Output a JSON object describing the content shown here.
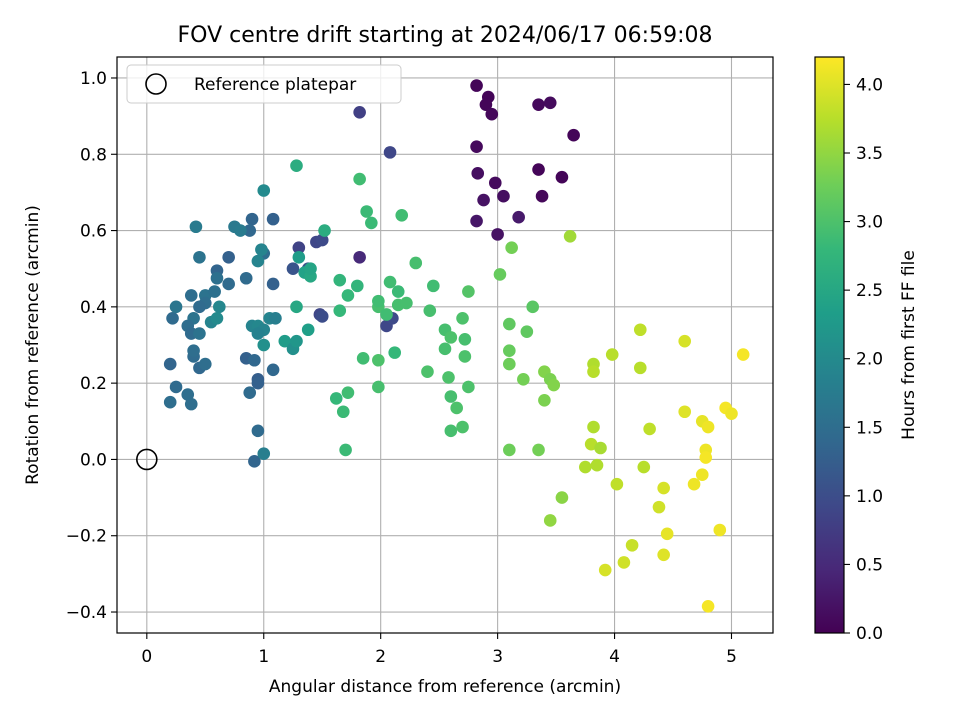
{
  "chart_data": {
    "type": "scatter",
    "title": "FOV centre drift starting at 2024/06/17 06:59:08",
    "xlabel": "Angular distance from reference (arcmin)",
    "ylabel": "Rotation from reference (arcmin)",
    "xlim": [
      -0.255,
      5.355
    ],
    "ylim": [
      -0.455,
      1.055
    ],
    "x_ticks": [
      0,
      1,
      2,
      3,
      4,
      5
    ],
    "x_tick_labels": [
      "0",
      "1",
      "2",
      "3",
      "4",
      "5"
    ],
    "y_ticks": [
      -0.4,
      -0.2,
      0.0,
      0.2,
      0.4,
      0.6,
      0.8,
      1.0
    ],
    "y_tick_labels": [
      "−0.4",
      "−0.2",
      "0.0",
      "0.2",
      "0.4",
      "0.6",
      "0.8",
      "1.0"
    ],
    "grid": true,
    "legend": {
      "position": "top-left",
      "entries": [
        {
          "label": "Reference platepar",
          "marker": "open-circle"
        }
      ]
    },
    "reference_point": {
      "x": 0.0,
      "y": 0.0
    },
    "colorbar": {
      "label": "Hours from first FF file",
      "colormap": "viridis",
      "range": [
        0.0,
        4.2
      ],
      "ticks": [
        0.0,
        0.5,
        1.0,
        1.5,
        2.0,
        2.5,
        3.0,
        3.5,
        4.0
      ],
      "tick_labels": [
        "0.0",
        "0.5",
        "1.0",
        "1.5",
        "2.0",
        "2.5",
        "3.0",
        "3.5",
        "4.0"
      ]
    },
    "colormap_stops": [
      "#440154",
      "#482878",
      "#3e4989",
      "#31688e",
      "#26828e",
      "#1f9e89",
      "#35b779",
      "#6ece58",
      "#b5de2b",
      "#fde725"
    ],
    "points": [
      [
        2.82,
        0.98,
        0.05
      ],
      [
        2.92,
        0.95,
        0.05
      ],
      [
        2.9,
        0.93,
        0.05
      ],
      [
        2.95,
        0.905,
        0.08
      ],
      [
        3.35,
        0.93,
        0.1
      ],
      [
        3.45,
        0.935,
        0.12
      ],
      [
        3.65,
        0.85,
        0.05
      ],
      [
        2.82,
        0.82,
        0.1
      ],
      [
        2.83,
        0.75,
        0.15
      ],
      [
        3.35,
        0.76,
        0.05
      ],
      [
        3.55,
        0.74,
        0.05
      ],
      [
        2.98,
        0.725,
        0.12
      ],
      [
        3.05,
        0.69,
        0.15
      ],
      [
        2.88,
        0.68,
        0.2
      ],
      [
        3.38,
        0.69,
        0.08
      ],
      [
        3.18,
        0.635,
        0.3
      ],
      [
        2.82,
        0.625,
        0.25
      ],
      [
        3.0,
        0.59,
        0.2
      ],
      [
        1.82,
        0.91,
        0.8
      ],
      [
        2.08,
        0.805,
        0.9
      ],
      [
        1.82,
        0.53,
        0.5
      ],
      [
        2.05,
        0.35,
        0.9
      ],
      [
        2.1,
        0.37,
        0.95
      ],
      [
        1.48,
        0.38,
        0.9
      ],
      [
        1.5,
        0.375,
        1.0
      ],
      [
        1.3,
        0.555,
        0.85
      ],
      [
        1.45,
        0.57,
        0.9
      ],
      [
        1.5,
        0.575,
        0.95
      ],
      [
        1.38,
        0.5,
        1.05
      ],
      [
        1.25,
        0.5,
        1.1
      ],
      [
        1.0,
        0.54,
        1.5
      ],
      [
        1.08,
        0.63,
        1.3
      ],
      [
        0.9,
        0.63,
        1.35
      ],
      [
        0.88,
        0.6,
        1.4
      ],
      [
        0.7,
        0.53,
        1.3
      ],
      [
        0.6,
        0.495,
        1.35
      ],
      [
        0.7,
        0.46,
        1.45
      ],
      [
        1.08,
        0.46,
        1.3
      ],
      [
        0.5,
        0.43,
        1.6
      ],
      [
        0.58,
        0.44,
        1.55
      ],
      [
        0.45,
        0.53,
        1.6
      ],
      [
        0.42,
        0.61,
        1.75
      ],
      [
        0.38,
        0.43,
        1.5
      ],
      [
        0.5,
        0.41,
        1.5
      ],
      [
        0.45,
        0.4,
        1.45
      ],
      [
        0.6,
        0.475,
        1.55
      ],
      [
        0.4,
        0.37,
        1.6
      ],
      [
        0.35,
        0.35,
        1.5
      ],
      [
        0.38,
        0.33,
        1.45
      ],
      [
        0.45,
        0.33,
        1.6
      ],
      [
        0.22,
        0.37,
        1.45
      ],
      [
        0.25,
        0.4,
        1.65
      ],
      [
        0.2,
        0.25,
        1.35
      ],
      [
        0.2,
        0.15,
        1.5
      ],
      [
        0.25,
        0.19,
        1.45
      ],
      [
        0.35,
        0.17,
        1.5
      ],
      [
        0.38,
        0.145,
        1.5
      ],
      [
        0.4,
        0.27,
        1.45
      ],
      [
        0.4,
        0.285,
        1.5
      ],
      [
        0.45,
        0.24,
        1.4
      ],
      [
        0.5,
        0.25,
        1.5
      ],
      [
        0.85,
        0.265,
        1.3
      ],
      [
        0.92,
        0.26,
        1.4
      ],
      [
        0.95,
        0.21,
        1.25
      ],
      [
        0.95,
        0.2,
        1.3
      ],
      [
        0.88,
        0.175,
        1.45
      ],
      [
        0.85,
        0.475,
        1.45
      ],
      [
        1.08,
        0.235,
        1.4
      ],
      [
        0.95,
        0.075,
        1.45
      ],
      [
        0.92,
        -0.005,
        1.35
      ],
      [
        1.0,
        0.015,
        1.8
      ],
      [
        0.55,
        0.36,
        1.9
      ],
      [
        0.6,
        0.37,
        2.0
      ],
      [
        0.62,
        0.4,
        1.95
      ],
      [
        0.9,
        0.35,
        1.9
      ],
      [
        0.95,
        0.35,
        1.95
      ],
      [
        1.0,
        0.34,
        1.9
      ],
      [
        0.95,
        0.33,
        1.85
      ],
      [
        1.05,
        0.37,
        1.9
      ],
      [
        1.1,
        0.37,
        1.8
      ],
      [
        1.0,
        0.3,
        2.1
      ],
      [
        1.18,
        0.31,
        2.3
      ],
      [
        1.25,
        0.29,
        2.1
      ],
      [
        1.28,
        0.31,
        2.2
      ],
      [
        0.95,
        0.52,
        1.9
      ],
      [
        0.98,
        0.55,
        1.9
      ],
      [
        1.0,
        0.705,
        2.0
      ],
      [
        0.75,
        0.61,
        1.7
      ],
      [
        0.8,
        0.6,
        1.75
      ],
      [
        1.28,
        0.4,
        2.5
      ],
      [
        1.3,
        0.53,
        2.3
      ],
      [
        1.35,
        0.49,
        2.4
      ],
      [
        1.4,
        0.48,
        2.5
      ],
      [
        1.4,
        0.5,
        2.45
      ],
      [
        1.38,
        0.34,
        2.35
      ],
      [
        1.52,
        0.6,
        2.6
      ],
      [
        1.28,
        0.77,
        2.6
      ],
      [
        1.65,
        0.39,
        2.8
      ],
      [
        1.65,
        0.47,
        2.75
      ],
      [
        1.72,
        0.43,
        2.8
      ],
      [
        1.8,
        0.455,
        2.75
      ],
      [
        1.82,
        0.735,
        2.9
      ],
      [
        1.88,
        0.65,
        2.85
      ],
      [
        1.92,
        0.62,
        2.85
      ],
      [
        2.18,
        0.64,
        2.9
      ],
      [
        1.98,
        0.4,
        2.95
      ],
      [
        1.98,
        0.415,
        2.9
      ],
      [
        2.05,
        0.38,
        2.9
      ],
      [
        2.08,
        0.465,
        2.9
      ],
      [
        2.15,
        0.44,
        2.85
      ],
      [
        2.15,
        0.405,
        2.95
      ],
      [
        2.22,
        0.41,
        2.95
      ],
      [
        2.3,
        0.515,
        2.95
      ],
      [
        2.45,
        0.455,
        2.9
      ],
      [
        2.42,
        0.39,
        2.95
      ],
      [
        2.4,
        0.23,
        3.0
      ],
      [
        1.85,
        0.265,
        2.9
      ],
      [
        1.98,
        0.26,
        3.0
      ],
      [
        1.98,
        0.19,
        2.95
      ],
      [
        2.12,
        0.28,
        2.8
      ],
      [
        1.62,
        0.16,
        2.8
      ],
      [
        1.68,
        0.125,
        2.85
      ],
      [
        1.72,
        0.175,
        2.9
      ],
      [
        1.7,
        0.025,
        2.85
      ],
      [
        2.55,
        0.34,
        2.95
      ],
      [
        2.6,
        0.32,
        3.0
      ],
      [
        2.55,
        0.29,
        2.95
      ],
      [
        2.7,
        0.37,
        3.0
      ],
      [
        2.72,
        0.315,
        2.95
      ],
      [
        2.72,
        0.27,
        3.0
      ],
      [
        2.75,
        0.44,
        3.05
      ],
      [
        2.58,
        0.215,
        3.0
      ],
      [
        2.75,
        0.19,
        3.0
      ],
      [
        2.6,
        0.165,
        2.95
      ],
      [
        2.65,
        0.135,
        3.0
      ],
      [
        2.6,
        0.075,
        2.95
      ],
      [
        2.7,
        0.085,
        3.0
      ],
      [
        3.02,
        0.485,
        3.2
      ],
      [
        3.12,
        0.555,
        3.3
      ],
      [
        3.1,
        0.355,
        3.15
      ],
      [
        3.1,
        0.285,
        3.2
      ],
      [
        3.1,
        0.25,
        3.25
      ],
      [
        3.25,
        0.335,
        3.15
      ],
      [
        3.3,
        0.4,
        3.1
      ],
      [
        3.22,
        0.21,
        3.3
      ],
      [
        3.1,
        0.025,
        3.25
      ],
      [
        3.35,
        0.025,
        3.3
      ],
      [
        3.4,
        0.23,
        3.4
      ],
      [
        3.45,
        0.21,
        3.35
      ],
      [
        3.48,
        0.195,
        3.4
      ],
      [
        3.4,
        0.155,
        3.35
      ],
      [
        3.62,
        0.585,
        3.6
      ],
      [
        3.55,
        -0.1,
        3.45
      ],
      [
        3.45,
        -0.16,
        3.5
      ],
      [
        3.75,
        -0.02,
        3.7
      ],
      [
        3.82,
        0.25,
        3.7
      ],
      [
        3.82,
        0.23,
        3.75
      ],
      [
        3.8,
        0.04,
        3.75
      ],
      [
        3.85,
        -0.015,
        3.7
      ],
      [
        3.88,
        0.03,
        3.65
      ],
      [
        3.82,
        0.085,
        3.7
      ],
      [
        3.98,
        0.275,
        3.75
      ],
      [
        4.22,
        0.34,
        3.8
      ],
      [
        4.22,
        0.24,
        3.75
      ],
      [
        4.02,
        -0.065,
        3.8
      ],
      [
        4.25,
        -0.02,
        3.75
      ],
      [
        4.3,
        0.08,
        3.8
      ],
      [
        4.15,
        -0.225,
        3.85
      ],
      [
        4.08,
        -0.27,
        3.9
      ],
      [
        3.92,
        -0.29,
        3.95
      ],
      [
        4.38,
        -0.125,
        3.9
      ],
      [
        4.42,
        -0.075,
        3.95
      ],
      [
        4.42,
        -0.25,
        4.0
      ],
      [
        4.45,
        -0.195,
        4.05
      ],
      [
        4.6,
        0.125,
        4.0
      ],
      [
        4.6,
        0.31,
        3.95
      ],
      [
        4.68,
        -0.065,
        4.1
      ],
      [
        4.75,
        0.1,
        4.05
      ],
      [
        4.8,
        0.085,
        4.1
      ],
      [
        4.78,
        0.025,
        4.1
      ],
      [
        4.78,
        0.005,
        4.15
      ],
      [
        4.75,
        -0.04,
        4.1
      ],
      [
        4.9,
        -0.185,
        4.1
      ],
      [
        4.8,
        -0.385,
        4.15
      ],
      [
        4.95,
        0.135,
        4.15
      ],
      [
        5.0,
        0.12,
        4.1
      ],
      [
        5.1,
        0.275,
        4.15
      ]
    ]
  }
}
